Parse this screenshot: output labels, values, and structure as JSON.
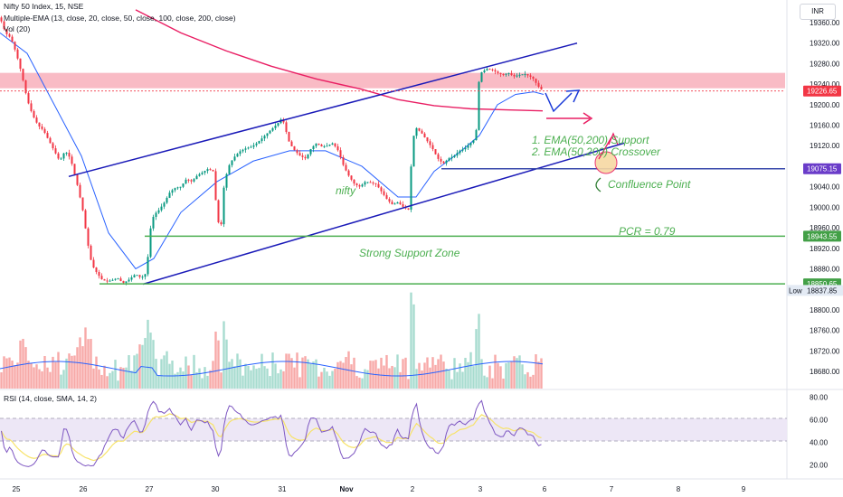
{
  "header": {
    "symbol_line": "Nifty 50 Index, 15, NSE",
    "ema_line": "Multiple-EMA (13, close, 20, close, 50, close, 100, close, 200, close)",
    "vol_line": "Vol (20)",
    "rsi_line": "RSI (14, close, SMA, 14, 2)",
    "currency": "INR"
  },
  "chart_data": {
    "type": "candlestick",
    "instrument": "Nifty 50 Index",
    "interval": "15",
    "exchange": "NSE",
    "price_axis": {
      "ylim": [
        18650,
        19390
      ],
      "ticks": [
        19360,
        19320,
        19280,
        19240,
        19200,
        19160,
        19120,
        19080,
        19040,
        19000,
        18960,
        18920,
        18880,
        18840,
        18800,
        18760,
        18720,
        18680
      ]
    },
    "rsi_axis": {
      "ylim": [
        10,
        85
      ],
      "ticks": [
        80,
        60,
        40,
        20
      ],
      "bands": [
        40,
        60
      ]
    },
    "x_ticks": [
      "25",
      "26",
      "27",
      "30",
      "31",
      "Nov",
      "2",
      "3",
      "6",
      "7",
      "8",
      "9"
    ],
    "price_labels": [
      {
        "value": "19226.65",
        "color": "#f23645"
      },
      {
        "value": "19075.15",
        "color": "#6a3cc9"
      },
      {
        "value": "18943.55",
        "color": "#43a047"
      },
      {
        "value": "18850.65",
        "color": "#43a047"
      },
      {
        "prefix": "Low",
        "value": "18837.85",
        "color": "#e3eaf4"
      }
    ],
    "price_path": [
      [
        0,
        19370
      ],
      [
        6,
        19340
      ],
      [
        12,
        19330
      ],
      [
        18,
        19300
      ],
      [
        24,
        19260
      ],
      [
        30,
        19210
      ],
      [
        36,
        19180
      ],
      [
        42,
        19160
      ],
      [
        48,
        19150
      ],
      [
        54,
        19130
      ],
      [
        60,
        19110
      ],
      [
        66,
        19090
      ],
      [
        72,
        19110
      ],
      [
        78,
        19095
      ],
      [
        86,
        19040
      ],
      [
        92,
        18990
      ],
      [
        96,
        18940
      ],
      [
        100,
        18900
      ],
      [
        104,
        18880
      ],
      [
        108,
        18870
      ],
      [
        112,
        18860
      ],
      [
        118,
        18855
      ],
      [
        124,
        18858
      ],
      [
        130,
        18862
      ],
      [
        136,
        18852
      ],
      [
        142,
        18858
      ],
      [
        150,
        18870
      ],
      [
        156,
        18862
      ],
      [
        162,
        18872
      ],
      [
        166,
        18955
      ],
      [
        170,
        18985
      ],
      [
        176,
        18995
      ],
      [
        182,
        19010
      ],
      [
        188,
        19030
      ],
      [
        194,
        19038
      ],
      [
        200,
        19040
      ],
      [
        206,
        19055
      ],
      [
        212,
        19050
      ],
      [
        218,
        19062
      ],
      [
        224,
        19068
      ],
      [
        230,
        19075
      ],
      [
        236,
        19070
      ],
      [
        240,
        18980
      ],
      [
        244,
        18955
      ],
      [
        248,
        19050
      ],
      [
        254,
        19085
      ],
      [
        260,
        19100
      ],
      [
        266,
        19110
      ],
      [
        272,
        19115
      ],
      [
        278,
        19118
      ],
      [
        284,
        19125
      ],
      [
        290,
        19135
      ],
      [
        296,
        19145
      ],
      [
        302,
        19155
      ],
      [
        308,
        19165
      ],
      [
        312,
        19175
      ],
      [
        316,
        19150
      ],
      [
        320,
        19125
      ],
      [
        326,
        19110
      ],
      [
        332,
        19100
      ],
      [
        338,
        19095
      ],
      [
        344,
        19115
      ],
      [
        350,
        19125
      ],
      [
        356,
        19118
      ],
      [
        362,
        19120
      ],
      [
        368,
        19125
      ],
      [
        374,
        19110
      ],
      [
        380,
        19080
      ],
      [
        386,
        19060
      ],
      [
        392,
        19045
      ],
      [
        398,
        19040
      ],
      [
        404,
        19050
      ],
      [
        410,
        19048
      ],
      [
        416,
        19045
      ],
      [
        422,
        19030
      ],
      [
        428,
        19015
      ],
      [
        434,
        19005
      ],
      [
        440,
        19010
      ],
      [
        446,
        19000
      ],
      [
        452,
        18995
      ],
      [
        456,
        19130
      ],
      [
        460,
        19155
      ],
      [
        466,
        19145
      ],
      [
        472,
        19130
      ],
      [
        478,
        19115
      ],
      [
        484,
        19095
      ],
      [
        490,
        19085
      ],
      [
        496,
        19095
      ],
      [
        502,
        19100
      ],
      [
        508,
        19110
      ],
      [
        514,
        19115
      ],
      [
        520,
        19125
      ],
      [
        526,
        19135
      ],
      [
        530,
        19260
      ],
      [
        534,
        19265
      ],
      [
        538,
        19270
      ],
      [
        544,
        19268
      ],
      [
        550,
        19262
      ],
      [
        556,
        19258
      ],
      [
        562,
        19262
      ],
      [
        568,
        19255
      ],
      [
        574,
        19258
      ],
      [
        580,
        19260
      ],
      [
        586,
        19255
      ],
      [
        590,
        19250
      ],
      [
        594,
        19238
      ],
      [
        598,
        19230
      ],
      [
        601,
        19226.65
      ]
    ],
    "series": [
      {
        "name": "EMA 200",
        "color": "#e91e63",
        "values": [
          [
            150,
            19385
          ],
          [
            200,
            19340
          ],
          [
            250,
            19305
          ],
          [
            300,
            19275
          ],
          [
            350,
            19250
          ],
          [
            400,
            19230
          ],
          [
            440,
            19210
          ],
          [
            480,
            19198
          ],
          [
            520,
            19192
          ],
          [
            560,
            19190
          ],
          [
            600,
            19188
          ]
        ]
      },
      {
        "name": "EMA 50",
        "color": "#2962ff",
        "values": [
          [
            0,
            19340
          ],
          [
            30,
            19300
          ],
          [
            60,
            19200
          ],
          [
            90,
            19100
          ],
          [
            120,
            18950
          ],
          [
            150,
            18880
          ],
          [
            170,
            18900
          ],
          [
            200,
            18990
          ],
          [
            240,
            19050
          ],
          [
            280,
            19090
          ],
          [
            320,
            19110
          ],
          [
            360,
            19110
          ],
          [
            400,
            19080
          ],
          [
            440,
            19020
          ],
          [
            460,
            19020
          ],
          [
            480,
            19070
          ],
          [
            510,
            19110
          ],
          [
            530,
            19140
          ],
          [
            550,
            19200
          ],
          [
            570,
            19220
          ],
          [
            590,
            19225
          ],
          [
            601,
            19220
          ]
        ]
      }
    ],
    "annotations": {
      "resistance_zone": [
        19232,
        19262
      ],
      "trend_lines": [
        {
          "from": [
            76,
            19060
          ],
          "to": [
            638,
            19320
          ],
          "color": "#1a1ab8"
        },
        {
          "from": [
            158,
            18850
          ],
          "to": [
            690,
            19125
          ],
          "color": "#1a1ab8"
        }
      ],
      "support_lines": [
        {
          "price": 18943.55,
          "from": 160,
          "color": "#4caf50"
        },
        {
          "price": 18850.65,
          "from": 110,
          "color": "#4caf50"
        },
        {
          "price": 19075.15,
          "from": 488,
          "color": "#3949ab"
        }
      ],
      "texts": {
        "ema_support": "1. EMA(50,200) Support",
        "ema_crossover": "2.  EMA(50,200) Crossover",
        "confluence": "Confluence Point",
        "pcr": "PCR = 0.79",
        "support_zone": "Strong Support Zone",
        "nifty": "nifty"
      }
    },
    "volume": {
      "average_color": "#2962ff",
      "up_color": "#a7dccf",
      "down_color": "#f7a9a7"
    },
    "rsi": {
      "line_color": "#7e57c2",
      "sma_color": "#f7e36a"
    }
  }
}
